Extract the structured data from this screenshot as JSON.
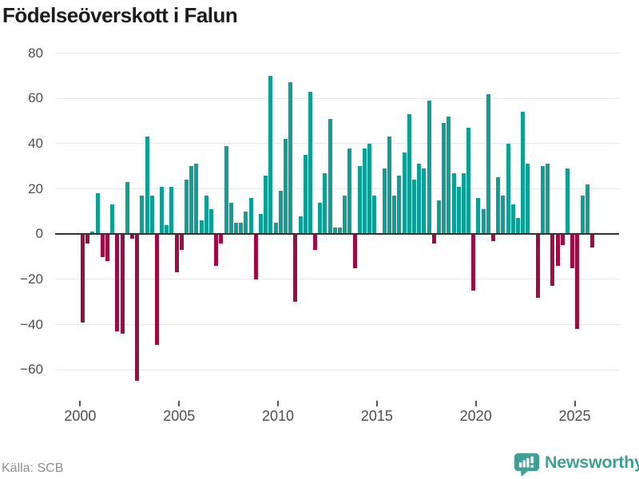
{
  "title": "Födelseöverskott i Falun",
  "source": {
    "label": "Källa: SCB"
  },
  "branding": {
    "name": "Newsworthy",
    "icon": "newsworthy-chart-bubble-icon",
    "color": "#3f9e98"
  },
  "chart_data": {
    "type": "bar",
    "title": "Födelseöverskott i Falun",
    "xlabel": "",
    "ylabel": "",
    "frequency": "quarterly",
    "x_start": "2000Q1",
    "x_end": "2025Q4",
    "grid": "horizontal",
    "legend": "none",
    "ylim": [
      -70,
      80
    ],
    "y_ticks": [
      80,
      60,
      40,
      20,
      0,
      -20,
      -40,
      -60
    ],
    "y_tick_labels": [
      "80",
      "60",
      "40",
      "20",
      "0",
      "−20",
      "−40",
      "−60"
    ],
    "x_ticks": [
      2000,
      2005,
      2010,
      2015,
      2020,
      2025
    ],
    "x_tick_labels": [
      "2000",
      "2005",
      "2010",
      "2015",
      "2020",
      "2025"
    ],
    "colors": {
      "positive": "#0ea096",
      "negative": "#9e0c44"
    },
    "categories": [
      "2000Q1",
      "2000Q2",
      "2000Q3",
      "2000Q4",
      "2001Q1",
      "2001Q2",
      "2001Q3",
      "2001Q4",
      "2002Q1",
      "2002Q2",
      "2002Q3",
      "2002Q4",
      "2003Q1",
      "2003Q2",
      "2003Q3",
      "2003Q4",
      "2004Q1",
      "2004Q2",
      "2004Q3",
      "2004Q4",
      "2005Q1",
      "2005Q2",
      "2005Q3",
      "2005Q4",
      "2006Q1",
      "2006Q2",
      "2006Q3",
      "2006Q4",
      "2007Q1",
      "2007Q2",
      "2007Q3",
      "2007Q4",
      "2008Q1",
      "2008Q2",
      "2008Q3",
      "2008Q4",
      "2009Q1",
      "2009Q2",
      "2009Q3",
      "2009Q4",
      "2010Q1",
      "2010Q2",
      "2010Q3",
      "2010Q4",
      "2011Q1",
      "2011Q2",
      "2011Q3",
      "2011Q4",
      "2012Q1",
      "2012Q2",
      "2012Q3",
      "2012Q4",
      "2013Q1",
      "2013Q2",
      "2013Q3",
      "2013Q4",
      "2014Q1",
      "2014Q2",
      "2014Q3",
      "2014Q4",
      "2015Q1",
      "2015Q2",
      "2015Q3",
      "2015Q4",
      "2016Q1",
      "2016Q2",
      "2016Q3",
      "2016Q4",
      "2017Q1",
      "2017Q2",
      "2017Q3",
      "2017Q4",
      "2018Q1",
      "2018Q2",
      "2018Q3",
      "2018Q4",
      "2019Q1",
      "2019Q2",
      "2019Q3",
      "2019Q4",
      "2020Q1",
      "2020Q2",
      "2020Q3",
      "2020Q4",
      "2021Q1",
      "2021Q2",
      "2021Q3",
      "2021Q4",
      "2022Q1",
      "2022Q2",
      "2022Q3",
      "2022Q4",
      "2023Q1",
      "2023Q2",
      "2023Q3",
      "2023Q4",
      "2024Q1",
      "2024Q2",
      "2024Q3",
      "2024Q4",
      "2025Q1",
      "2025Q2",
      "2025Q3",
      "2025Q4"
    ],
    "values": [
      -39,
      -4,
      1,
      18,
      -10,
      -12,
      13,
      -43,
      -44,
      23,
      -2,
      -65,
      17,
      43,
      17,
      -49,
      21,
      4,
      21,
      -17,
      -7,
      24,
      30,
      31,
      6,
      17,
      11,
      -14,
      -4,
      39,
      14,
      5,
      5,
      10,
      16,
      -20,
      9,
      26,
      70,
      5,
      19,
      42,
      67,
      -30,
      8,
      35,
      63,
      -7,
      14,
      27,
      51,
      3,
      3,
      17,
      38,
      -15,
      30,
      38,
      40,
      17,
      0,
      29,
      43,
      17,
      26,
      36,
      53,
      24,
      31,
      29,
      59,
      -4,
      15,
      49,
      52,
      27,
      21,
      27,
      47,
      -25,
      16,
      11,
      62,
      -3,
      25,
      17,
      40,
      13,
      7,
      54,
      31,
      0,
      -28,
      30,
      31,
      -23,
      -14,
      -5,
      29,
      -15,
      -42,
      17,
      22,
      -6
    ]
  }
}
